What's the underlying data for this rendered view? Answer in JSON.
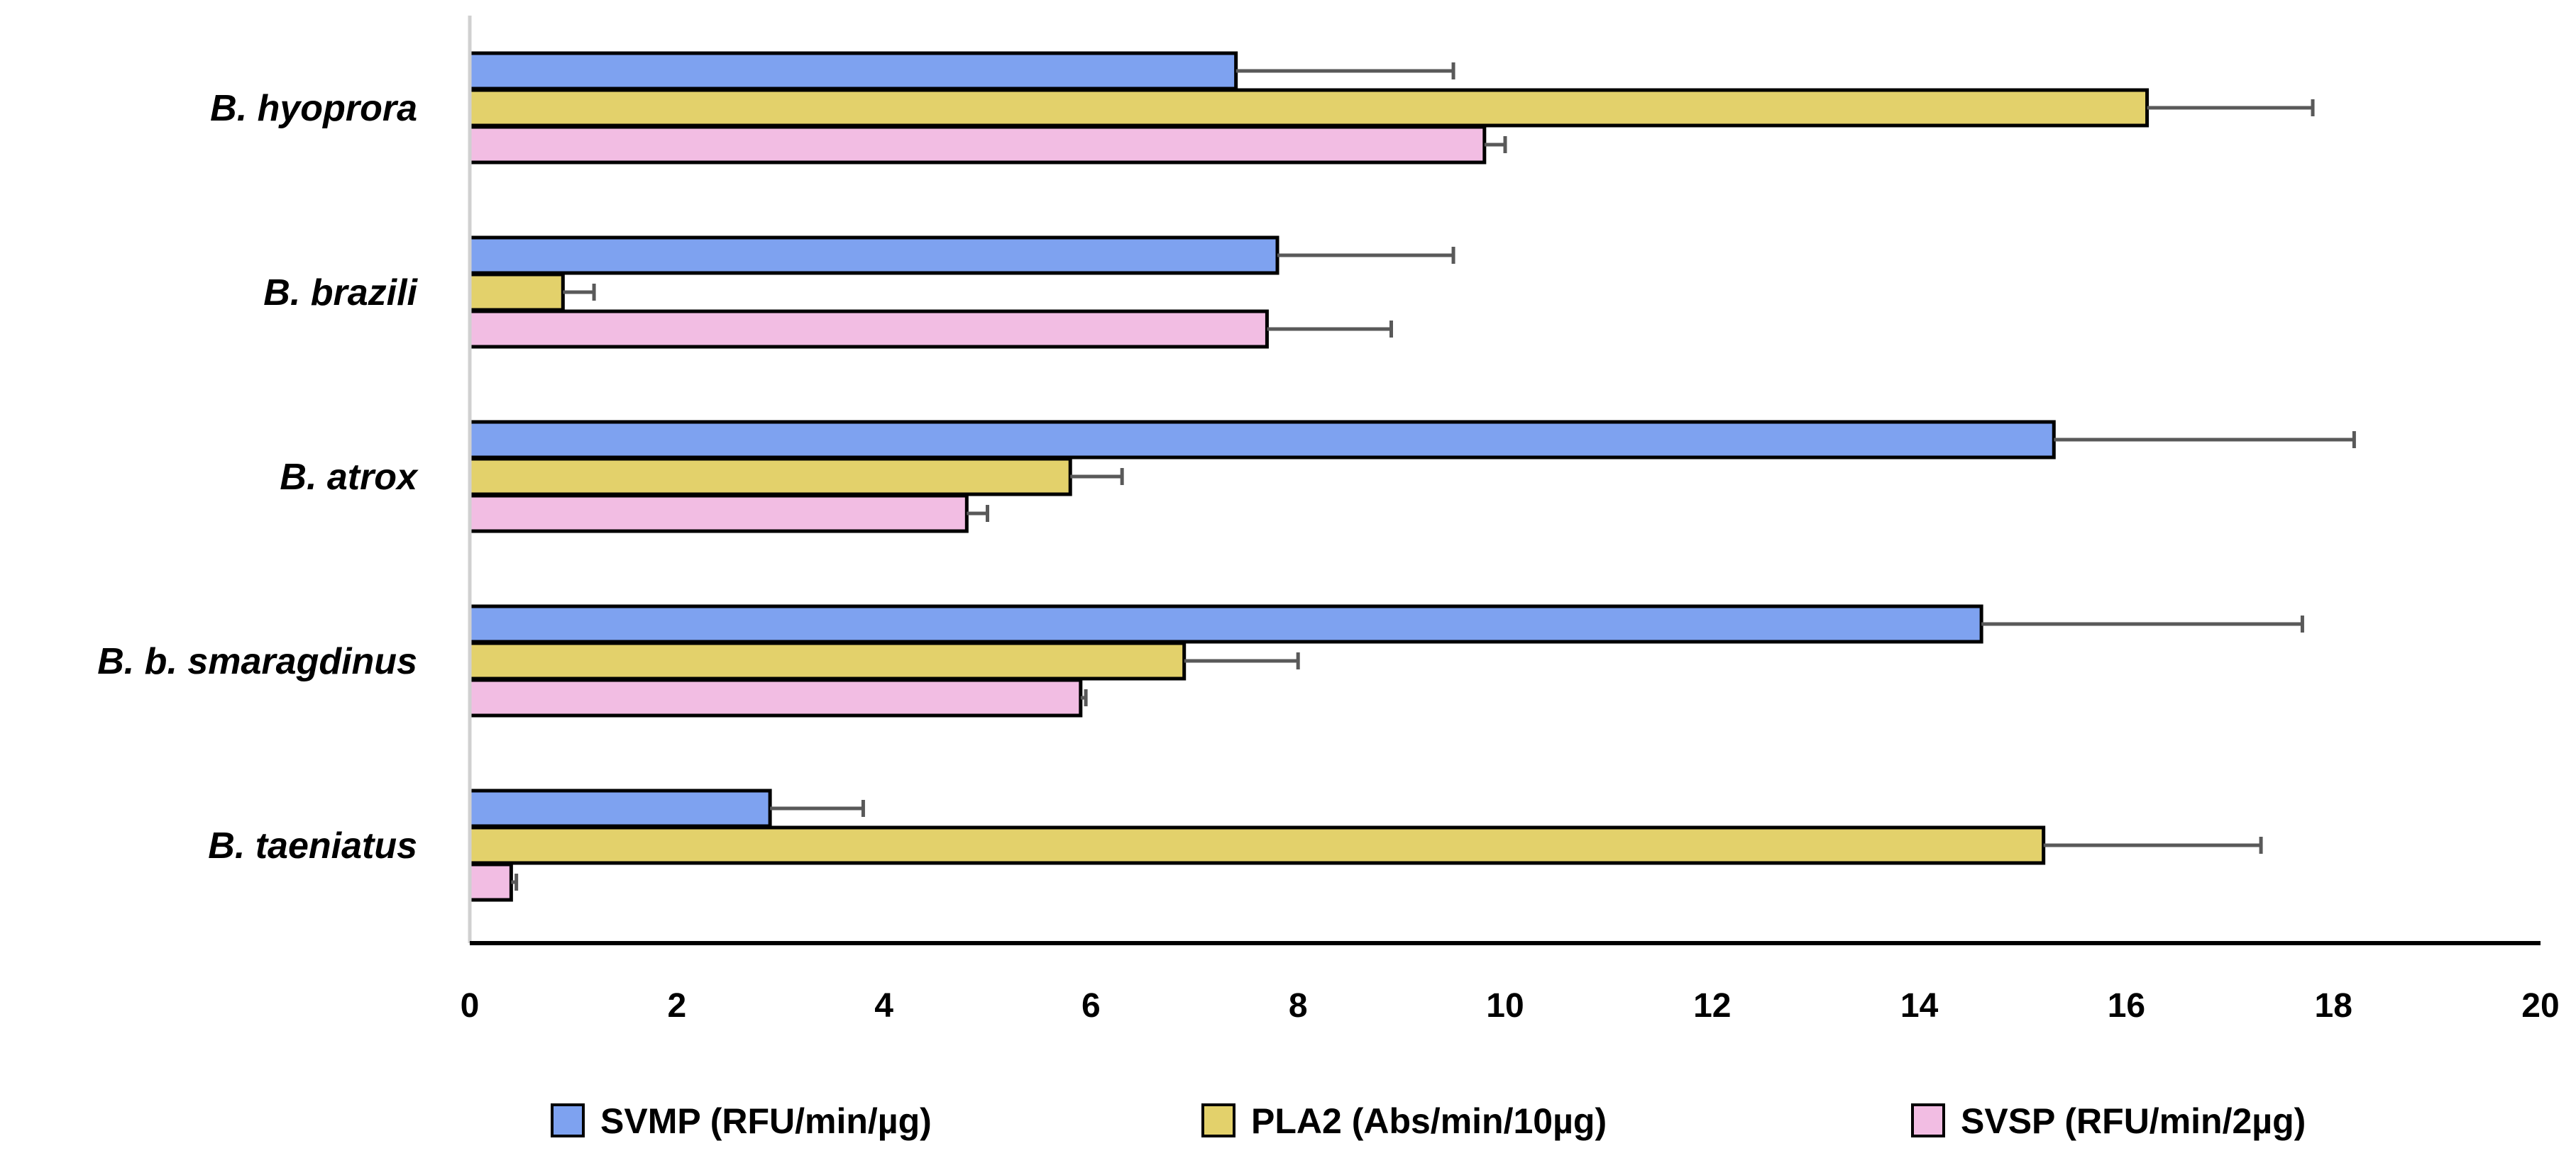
{
  "chart_data": {
    "type": "bar",
    "orientation": "horizontal",
    "categories": [
      "B. hyoprora",
      "B. brazili",
      "B. atrox",
      "B. b. smaragdinus",
      "B. taeniatus"
    ],
    "series": [
      {
        "name": "SVMP (RFU/min/µg)",
        "color": "#7ea2f0",
        "values": [
          7.4,
          7.8,
          15.3,
          14.6,
          2.9
        ],
        "errors": [
          2.1,
          1.7,
          2.9,
          3.1,
          0.9
        ]
      },
      {
        "name": "PLA2 (Abs/min/10µg)",
        "color": "#e3d16b",
        "values": [
          16.2,
          0.9,
          5.8,
          6.9,
          15.2
        ],
        "errors": [
          1.6,
          0.3,
          0.5,
          1.1,
          2.1
        ]
      },
      {
        "name": "SVSP (RFU/min/2µg)",
        "color": "#f2bde3",
        "values": [
          9.8,
          7.7,
          4.8,
          5.9,
          0.4
        ],
        "errors": [
          0.2,
          1.2,
          0.2,
          0.05,
          0.05
        ]
      }
    ],
    "x_ticks": [
      "0",
      "2",
      "4",
      "6",
      "8",
      "10",
      "12",
      "14",
      "16",
      "18",
      "20"
    ],
    "xlim": [
      0,
      20
    ],
    "title": "",
    "xlabel": "",
    "ylabel": "",
    "legend_position": "bottom",
    "grid": false
  }
}
